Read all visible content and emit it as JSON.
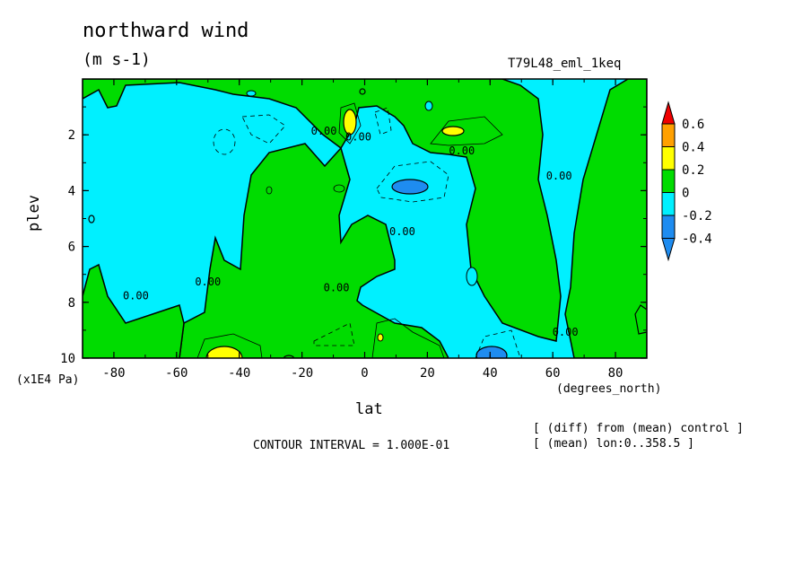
{
  "chart_data": {
    "type": "contour",
    "title": "northward wind",
    "units": "(m s-1)",
    "experiment": "T79L48_eml_1keq",
    "xlabel": "lat",
    "x_units": "(degrees_north)",
    "ylabel": "plev",
    "y_scale_note": "(x1E4 Pa)",
    "xlim": [
      -90,
      90
    ],
    "ylim": [
      0,
      10
    ],
    "y_inverted": true,
    "x_ticks": [
      -80,
      -60,
      -40,
      -20,
      0,
      20,
      40,
      60,
      80
    ],
    "x_tick_labels": [
      "-80",
      "-60",
      "-40",
      "-20",
      "0",
      "20",
      "40",
      "60",
      "80"
    ],
    "y_ticks": [
      2,
      4,
      6,
      8,
      10
    ],
    "y_tick_labels": [
      "2",
      "4",
      "6",
      "8",
      "10"
    ],
    "contour_interval_text": "CONTOUR INTERVAL = 1.000E-01",
    "notes": [
      "[ (diff) from (mean) control ]",
      "[ (mean) lon:0..358.5 ]"
    ],
    "colorbar": {
      "levels": [
        -0.4,
        -0.2,
        0,
        0.2,
        0.4,
        0.6
      ],
      "level_labels": [
        "-0.4",
        "-0.2",
        "0",
        "0.2",
        "0.4",
        "0.6"
      ],
      "colors": [
        "#1e8cf0",
        "#00f0ff",
        "#00dc00",
        "#ffff00",
        "#ffa000",
        "#f00000"
      ],
      "under_color": "#1e8cf0",
      "over_color": "#f00000"
    },
    "contour_labels": [
      {
        "text": "0.00",
        "lat": -13,
        "plev": 2.0
      },
      {
        "text": "0.00",
        "lat": -2,
        "plev": 2.2
      },
      {
        "text": "0.00",
        "lat": 31,
        "plev": 2.7
      },
      {
        "text": "0.00",
        "lat": 12,
        "plev": 5.6
      },
      {
        "text": "0.00",
        "lat": 62,
        "plev": 3.6
      },
      {
        "text": "0.00",
        "lat": -50,
        "plev": 7.4
      },
      {
        "text": "0.00",
        "lat": -73,
        "plev": 7.9
      },
      {
        "text": "0.00",
        "lat": -9,
        "plev": 7.6
      },
      {
        "text": "0.00",
        "lat": 64,
        "plev": 9.2
      }
    ],
    "regions": [
      {
        "level": "-0.2..0",
        "color": "#00f0ff",
        "description": "background negative"
      },
      {
        "level": "0..0.2",
        "color": "#00dc00",
        "lat_range": [
          -33,
          35
        ],
        "plev_range": [
          2.5,
          10
        ]
      },
      {
        "level": "0..0.2",
        "color": "#00dc00",
        "lat_range": [
          36,
          64
        ],
        "plev_range": [
          1,
          10
        ]
      },
      {
        "level": "0..0.2",
        "color": "#00dc00",
        "lat_range": [
          72,
          90
        ],
        "plev_range": [
          0,
          10
        ]
      },
      {
        "level": "0.2..0.4",
        "color": "#ffff00",
        "lat": -4,
        "plev": 1.8
      },
      {
        "level": "0.2..0.4",
        "color": "#ffff00",
        "lat": 29,
        "plev": 2.0
      },
      {
        "level": "0.2..0.4",
        "color": "#ffff00",
        "lat": -47,
        "plev": 9.8
      },
      {
        "level": "-0.4..-0.2",
        "color": "#1e8cf0",
        "lat": 13,
        "plev": 4.0
      },
      {
        "level": "-0.4..-0.2",
        "color": "#1e8cf0",
        "lat": 42,
        "plev": 9.8
      }
    ]
  }
}
